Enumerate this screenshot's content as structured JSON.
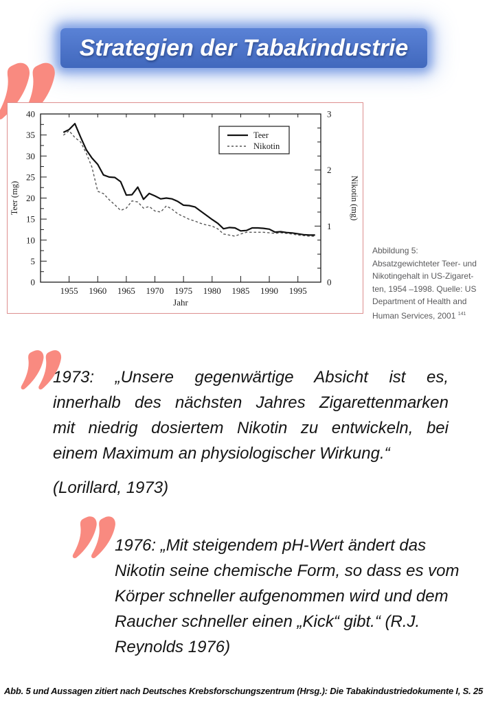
{
  "title": {
    "text": "Strategien der Tabakindustrie",
    "bg_color": "#4a72c4",
    "glow_color": "#7da2e8",
    "text_color": "#ffffff"
  },
  "accent": {
    "quote_mark_color": "#f98a80"
  },
  "figure": {
    "border_color": "#dd8e8e",
    "caption_lines": [
      "Abbildung 5:",
      "Absatzgewichteter Teer- und",
      "Nikotingehalt in US-Zigaret-",
      "ten, 1954 –1998. Quelle: US",
      "Department of Health and",
      "Human Services, 2001"
    ],
    "caption_superscript": "141"
  },
  "chart_data": {
    "type": "line",
    "title": "",
    "xlabel": "Jahr",
    "ylabel_left": "Teer (mg)",
    "ylabel_right": "Nikotin (mg)",
    "xlim": [
      1950,
      1999
    ],
    "ylim_left": [
      0,
      40
    ],
    "ylim_right": [
      0,
      3
    ],
    "x_ticks": [
      1955,
      1960,
      1965,
      1970,
      1975,
      1980,
      1985,
      1990,
      1995
    ],
    "y_left_ticks": [
      0,
      5,
      10,
      15,
      20,
      25,
      30,
      35,
      40
    ],
    "y_right_ticks": [
      0,
      1,
      2,
      3
    ],
    "grid": false,
    "legend": [
      "Teer",
      "Nikotin"
    ],
    "legend_position": "upper right inside",
    "years": [
      1954,
      1955,
      1956,
      1957,
      1958,
      1959,
      1960,
      1961,
      1962,
      1963,
      1964,
      1965,
      1966,
      1967,
      1968,
      1969,
      1970,
      1971,
      1972,
      1973,
      1974,
      1975,
      1976,
      1977,
      1978,
      1979,
      1980,
      1981,
      1982,
      1983,
      1984,
      1985,
      1986,
      1987,
      1988,
      1989,
      1990,
      1991,
      1992,
      1993,
      1994,
      1995,
      1996,
      1997,
      1998
    ],
    "series": [
      {
        "name": "Teer",
        "axis": "left",
        "style": "solid",
        "values": [
          35.6,
          36.3,
          37.7,
          34.5,
          31.5,
          29.5,
          28.0,
          25.5,
          25.0,
          24.9,
          23.9,
          20.7,
          20.8,
          22.6,
          19.7,
          21.1,
          20.5,
          19.8,
          20.0,
          19.8,
          19.2,
          18.3,
          18.2,
          17.9,
          16.9,
          15.9,
          14.9,
          14.0,
          12.7,
          13.0,
          12.9,
          12.2,
          12.3,
          12.9,
          12.9,
          12.8,
          12.6,
          11.9,
          12.0,
          11.8,
          11.7,
          11.5,
          11.3,
          11.2,
          11.2
        ]
      },
      {
        "name": "Nikotin",
        "axis": "right",
        "style": "dashed",
        "values": [
          2.62,
          2.7,
          2.58,
          2.5,
          2.3,
          2.05,
          1.62,
          1.58,
          1.47,
          1.38,
          1.28,
          1.32,
          1.45,
          1.43,
          1.32,
          1.35,
          1.27,
          1.25,
          1.36,
          1.3,
          1.22,
          1.17,
          1.12,
          1.09,
          1.05,
          1.02,
          1.0,
          0.95,
          0.86,
          0.84,
          0.82,
          0.86,
          0.89,
          0.89,
          0.89,
          0.89,
          0.88,
          0.87,
          0.88,
          0.87,
          0.86,
          0.84,
          0.83,
          0.82,
          0.82
        ]
      }
    ]
  },
  "quote1": {
    "lines": [
      "1973: „Unsere gegenwärtige Absicht ist es,",
      "innerhalb des nächsten Jahres Zigarettenmarken",
      "mit niedrig dosiertem Nikotin zu entwickeln, bei",
      "einem Maximum an physiologischer Wirkung.“"
    ],
    "attribution": "(Lorillard, 1973)"
  },
  "quote2": {
    "lines": [
      "1976: „Mit steigendem pH-Wert ändert das",
      "Nikotin seine chemische Form, so dass es vom",
      "Körper schneller aufgenommen wird und dem",
      "Raucher schneller einen „Kick“ gibt.“ (R.J.",
      "Reynolds 1976)"
    ]
  },
  "footer": {
    "text": "Abb. 5 und Aussagen zitiert nach Deutsches Krebsforschungszentrum (Hrsg.): Die Tabakindustriedokumente I, S. 25"
  }
}
